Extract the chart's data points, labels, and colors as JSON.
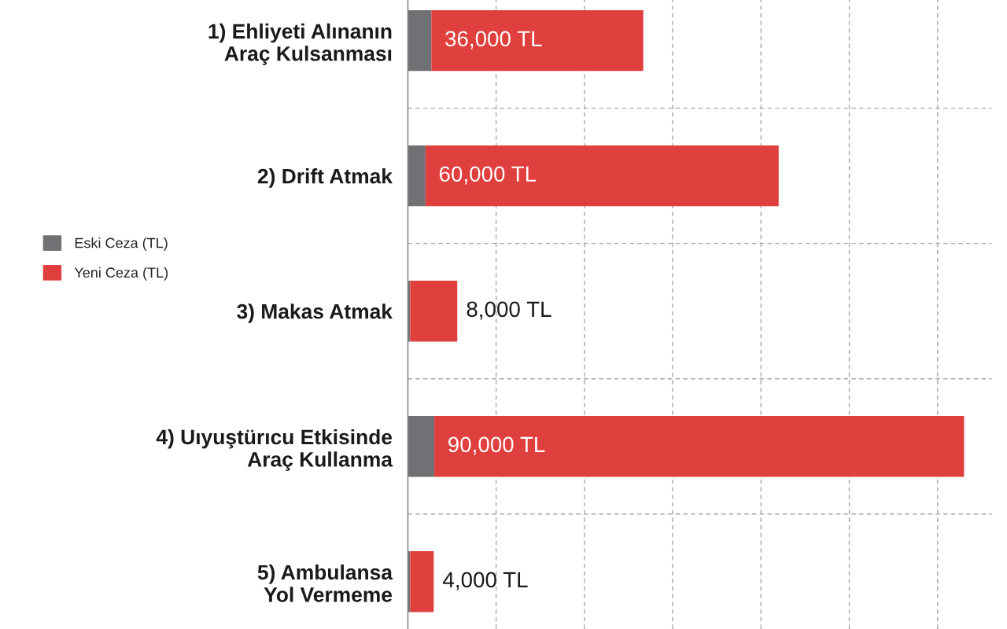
{
  "chart_data": {
    "type": "bar",
    "orientation": "horizontal",
    "stacked": true,
    "categories": [
      "1) Ehliyeti Alınanın\nAraç Kulsanması",
      "2) Drift Atmak",
      "3) Makas Atmak",
      "4) Uıyuştürıcu Etkisinde\nAraç Kullanma",
      "5) Ambulansa\nYol Vermeme"
    ],
    "series": [
      {
        "name": "Eski Ceza (TL)",
        "color": "#707174",
        "values": [
          4000,
          3000,
          400,
          4500,
          400
        ]
      },
      {
        "name": "Yeni Ceza (TL)",
        "color": "#e0403d",
        "values": [
          36000,
          60000,
          8000,
          90000,
          4000
        ],
        "value_labels": [
          "36,000 TL",
          "60,000 TL",
          "8,000 TL",
          "90,000 TL",
          "4,000 TL"
        ]
      }
    ],
    "grid": true,
    "legend": "left",
    "tick_labels": "y"
  }
}
